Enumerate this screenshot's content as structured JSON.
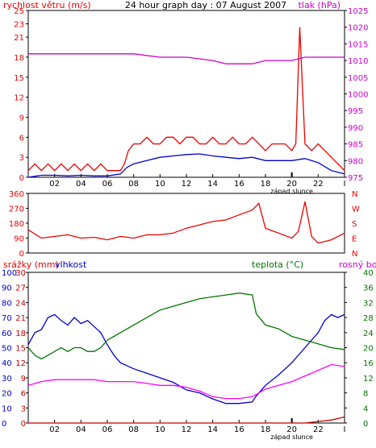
{
  "header": {
    "wind_label": "rychlost větru (m/s)",
    "title": "24 hour graph day : 07 August 2007",
    "pressure_label": "tlak (hPa)"
  },
  "middle": {
    "direction_letters": [
      "N",
      "W",
      "S",
      "E",
      "N"
    ]
  },
  "bottom": {
    "rain_label": "srážky (mm)",
    "humidity_label": "vlhkost",
    "temp_label": "teplota (°C)",
    "dew_label": "rosný bod"
  },
  "sunset_label": "západ slunce",
  "colors": {
    "wind": "#ee0000",
    "avg_wind": "#0000cc",
    "pressure": "#cc00cc",
    "direction": "#ee0000",
    "humidity": "#0000cc",
    "temperature": "#007700",
    "dewpoint": "#ff00ff",
    "rain": "#cc0000"
  },
  "chart_data": [
    {
      "type": "line",
      "x_ticks": [
        "02",
        "04",
        "06",
        "08",
        "10",
        "12",
        "14",
        "16",
        "18",
        "20",
        "22",
        "I"
      ],
      "y_left_ticks": [
        0,
        3,
        6,
        9,
        12,
        15,
        18,
        21,
        23,
        25
      ],
      "y_right_ticks": [
        975,
        980,
        985,
        990,
        995,
        1000,
        1005,
        1010,
        1015,
        1020,
        1025
      ],
      "ylim_left": [
        0,
        25
      ],
      "ylim_right": [
        975,
        1025
      ],
      "series": [
        {
          "name": "rychlost větru (m/s)",
          "axis": "left",
          "color": "#ee0000",
          "x": [
            0,
            0.5,
            1,
            1.5,
            2,
            2.5,
            3,
            3.5,
            4,
            4.5,
            5,
            5.5,
            6,
            6.5,
            7,
            7.3,
            7.6,
            8,
            8.5,
            9,
            9.5,
            10,
            10.5,
            11,
            11.5,
            12,
            12.5,
            13,
            13.5,
            14,
            14.5,
            15,
            15.5,
            16,
            16.5,
            17,
            17.5,
            18,
            18.5,
            19,
            19.5,
            20,
            20.3,
            20.6,
            21,
            21.5,
            22,
            22.5,
            23,
            23.5,
            24
          ],
          "y": [
            1,
            2,
            1,
            2,
            1,
            2,
            1,
            2,
            1,
            2,
            1,
            2,
            1,
            1,
            1,
            2,
            4,
            5,
            5,
            6,
            5,
            5,
            6,
            6,
            5,
            6,
            6,
            5,
            5,
            6,
            5,
            5,
            6,
            5,
            5,
            6,
            5,
            4,
            5,
            5,
            5,
            4,
            5,
            22.5,
            5,
            4,
            5,
            4,
            3,
            2,
            1
          ]
        },
        {
          "name": "avg wind",
          "axis": "left",
          "color": "#0000cc",
          "x": [
            0,
            1,
            2,
            3,
            4,
            5,
            6,
            7,
            7.5,
            8,
            9,
            10,
            11,
            12,
            13,
            14,
            15,
            16,
            17,
            18,
            19,
            20,
            21,
            22,
            23,
            24
          ],
          "y": [
            0,
            0.3,
            0.3,
            0.2,
            0.3,
            0.2,
            0.2,
            0.5,
            1.5,
            2,
            2.5,
            3,
            3.2,
            3.4,
            3.5,
            3.2,
            3,
            2.8,
            3,
            2.5,
            2.5,
            2.5,
            2.8,
            2.2,
            1,
            0.5
          ]
        },
        {
          "name": "tlak (hPa)",
          "axis": "right",
          "color": "#cc00cc",
          "x": [
            0,
            2,
            3,
            4,
            6,
            8,
            10,
            11,
            12,
            14,
            15,
            16,
            17,
            18,
            19,
            20,
            21,
            22,
            23,
            24
          ],
          "y": [
            1012,
            1012,
            1012,
            1012,
            1012,
            1012,
            1011,
            1011,
            1011,
            1010,
            1009,
            1009,
            1009,
            1010,
            1010,
            1010,
            1011,
            1011,
            1011,
            1011
          ]
        }
      ]
    },
    {
      "type": "line",
      "y_ticks": [
        0,
        90,
        180,
        270,
        360
      ],
      "ylim": [
        0,
        360
      ],
      "series": [
        {
          "name": "direction",
          "color": "#ee0000",
          "x": [
            0,
            1,
            2,
            3,
            4,
            5,
            6,
            7,
            8,
            9,
            10,
            11,
            12,
            13,
            14,
            15,
            16,
            17,
            17.5,
            18,
            19,
            20,
            20.5,
            21,
            21.5,
            22,
            23,
            24
          ],
          "y": [
            140,
            90,
            100,
            110,
            90,
            95,
            80,
            100,
            90,
            110,
            110,
            120,
            150,
            170,
            190,
            200,
            230,
            260,
            300,
            150,
            120,
            90,
            130,
            310,
            100,
            60,
            80,
            120
          ]
        }
      ]
    },
    {
      "type": "line",
      "y_left_ticks": [
        0,
        10,
        20,
        30,
        40,
        50,
        60,
        70,
        80,
        90,
        100
      ],
      "y_left2_ticks": [
        0,
        3,
        6,
        9,
        12,
        15,
        18,
        21,
        24,
        27,
        30
      ],
      "y_right_ticks": [
        0,
        4,
        8,
        12,
        16,
        20,
        24,
        28,
        32,
        36,
        40
      ],
      "ylim_humidity": [
        0,
        100
      ],
      "ylim_temp": [
        0,
        40
      ],
      "series": [
        {
          "name": "vlhkost",
          "color": "#0000cc",
          "x": [
            0,
            0.5,
            1,
            1.5,
            2,
            2.5,
            3,
            3.5,
            4,
            4.5,
            5,
            5.5,
            6,
            6.5,
            7,
            8,
            9,
            10,
            11,
            12,
            13,
            14,
            15,
            16,
            17,
            17.3,
            18,
            19,
            20,
            21,
            22,
            22.5,
            23,
            23.5,
            24
          ],
          "y": [
            52,
            60,
            62,
            70,
            72,
            68,
            65,
            70,
            66,
            68,
            64,
            60,
            52,
            45,
            40,
            36,
            33,
            30,
            27,
            22,
            20,
            16,
            13,
            13,
            14,
            18,
            25,
            32,
            40,
            50,
            60,
            68,
            72,
            70,
            72
          ]
        },
        {
          "name": "teplota (°C)",
          "color": "#007700",
          "x": [
            0,
            0.5,
            1,
            1.5,
            2,
            2.5,
            3,
            3.5,
            4,
            4.5,
            5,
            5.5,
            6,
            6.5,
            7,
            8,
            9,
            10,
            11,
            12,
            13,
            14,
            15,
            16,
            17,
            17.3,
            18,
            19,
            20,
            21,
            22,
            23,
            24
          ],
          "y": [
            20,
            18,
            17,
            18,
            19,
            20,
            19,
            20,
            20,
            19,
            19,
            20,
            22,
            23,
            24,
            26,
            28,
            30,
            31,
            32,
            33,
            33.5,
            34,
            34.5,
            34,
            29,
            26,
            25,
            23,
            22,
            21,
            20,
            19.5
          ]
        },
        {
          "name": "rosný bod",
          "color": "#ff00ff",
          "x": [
            0,
            1,
            2,
            3,
            4,
            5,
            6,
            7,
            8,
            9,
            10,
            11,
            12,
            13,
            14,
            15,
            16,
            17,
            18,
            19,
            20,
            21,
            22,
            23,
            24
          ],
          "y": [
            10,
            11,
            11.5,
            11.5,
            11.5,
            11.5,
            11,
            11,
            11,
            10.5,
            10,
            10,
            9.5,
            8.5,
            7,
            6.5,
            6.5,
            7,
            9,
            10,
            11,
            12.5,
            14,
            15.5,
            15
          ]
        },
        {
          "name": "srážky (mm)",
          "color": "#cc0000",
          "x": [
            0,
            20,
            21,
            22,
            23,
            24
          ],
          "y": [
            0,
            0,
            0,
            1,
            2,
            4
          ]
        }
      ]
    }
  ]
}
